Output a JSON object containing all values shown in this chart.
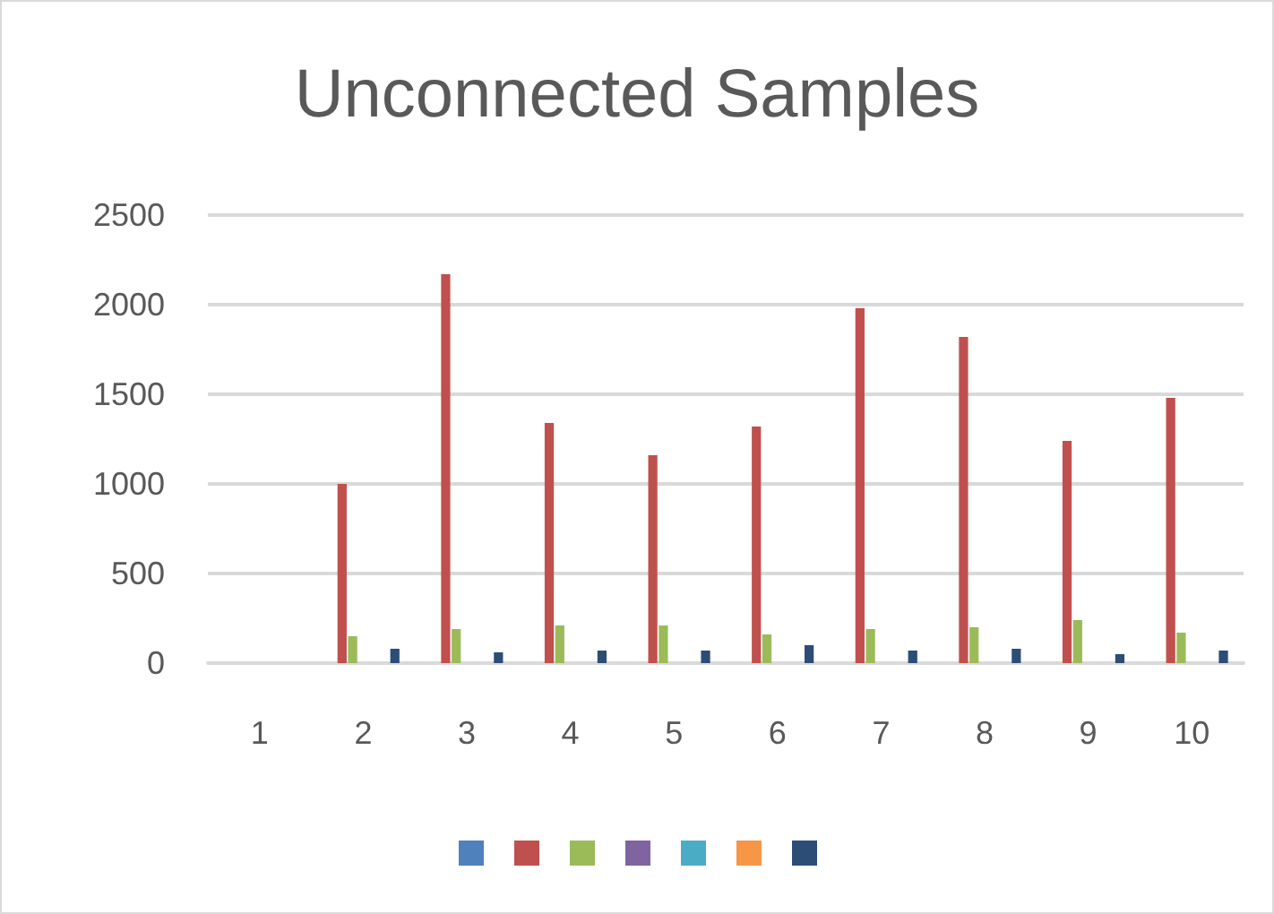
{
  "chart_data": {
    "type": "bar",
    "title": "Unconnected Samples",
    "categories": [
      "1",
      "2",
      "3",
      "4",
      "5",
      "6",
      "7",
      "8",
      "9",
      "10"
    ],
    "series": [
      {
        "color": "#4f81bd",
        "values": [
          0,
          0,
          0,
          0,
          0,
          0,
          0,
          0,
          0,
          0
        ]
      },
      {
        "color": "#c0504d",
        "values": [
          0,
          1000,
          2170,
          1340,
          1160,
          1320,
          1980,
          1820,
          1240,
          1480
        ]
      },
      {
        "color": "#9bbb59",
        "values": [
          0,
          150,
          190,
          210,
          210,
          160,
          190,
          200,
          240,
          170
        ]
      },
      {
        "color": "#8064a2",
        "values": [
          0,
          0,
          0,
          0,
          0,
          0,
          0,
          0,
          0,
          0
        ]
      },
      {
        "color": "#4bacc6",
        "values": [
          0,
          0,
          0,
          0,
          0,
          0,
          0,
          0,
          0,
          0
        ]
      },
      {
        "color": "#f79646",
        "values": [
          0,
          0,
          0,
          0,
          0,
          0,
          0,
          0,
          0,
          0
        ]
      },
      {
        "color": "#2c4d75",
        "values": [
          0,
          80,
          60,
          70,
          70,
          100,
          70,
          80,
          50,
          70
        ]
      }
    ],
    "ylim": [
      0,
      2500
    ],
    "yticks": [
      0,
      500,
      1000,
      1500,
      2000,
      2500
    ],
    "grid": "y"
  }
}
